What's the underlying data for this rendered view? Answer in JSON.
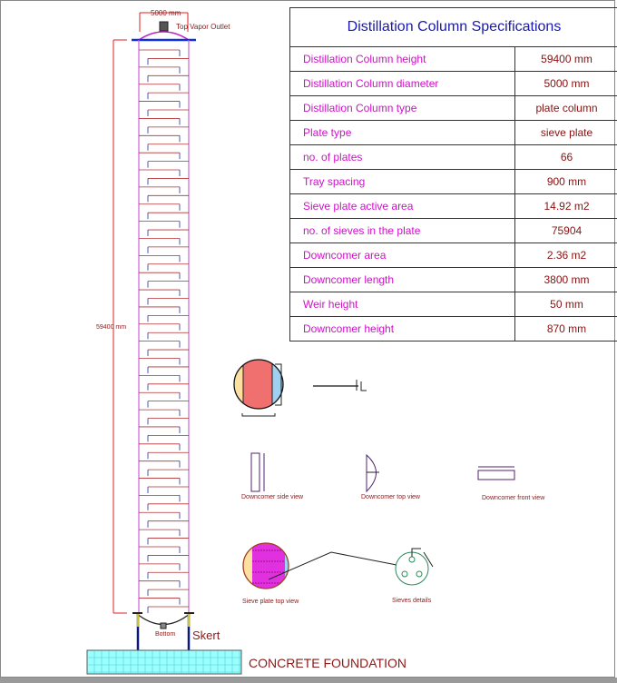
{
  "specs": {
    "title": "Distillation Column Specifications",
    "rows": [
      {
        "label": "Distillation Column height",
        "value": "59400 mm"
      },
      {
        "label": "Distillation Column diameter",
        "value": "5000 mm"
      },
      {
        "label": "Distillation Column type",
        "value": "plate column"
      },
      {
        "label": "Plate type",
        "value": "sieve plate"
      },
      {
        "label": "no. of plates",
        "value": "66"
      },
      {
        "label": "Tray spacing",
        "value": "900 mm"
      },
      {
        "label": "Sieve plate active area",
        "value": "14.92 m2"
      },
      {
        "label": "no. of sieves in the plate",
        "value": "75904"
      },
      {
        "label": "Downcomer area",
        "value": "2.36 m2"
      },
      {
        "label": "Downcomer length",
        "value": "3800 mm"
      },
      {
        "label": "Weir height",
        "value": "50 mm"
      },
      {
        "label": "Downcomer height",
        "value": "870 mm"
      }
    ]
  },
  "column": {
    "diameter_label": "5000 mm",
    "height_label": "59400 mm",
    "top_label": "Top Vapor Outlet",
    "bottom_label": "Bottom",
    "skirt_label": "Skert",
    "foundation_label": "CONCRETE FOUNDATION",
    "plate_count": 66
  },
  "views": {
    "downcomer_side": "Downcomer side view",
    "downcomer_top": "Downcomer top view",
    "downcomer_front": "Downcomer front view",
    "sieve_plate_top": "Sieve plate top view",
    "sieves_details": "Sieves details"
  },
  "colors": {
    "shell": "#d060e0",
    "tray": "#b03030",
    "downcomer": "#2030a0",
    "dimension": "#e02020",
    "foundation": "#9ff"
  }
}
